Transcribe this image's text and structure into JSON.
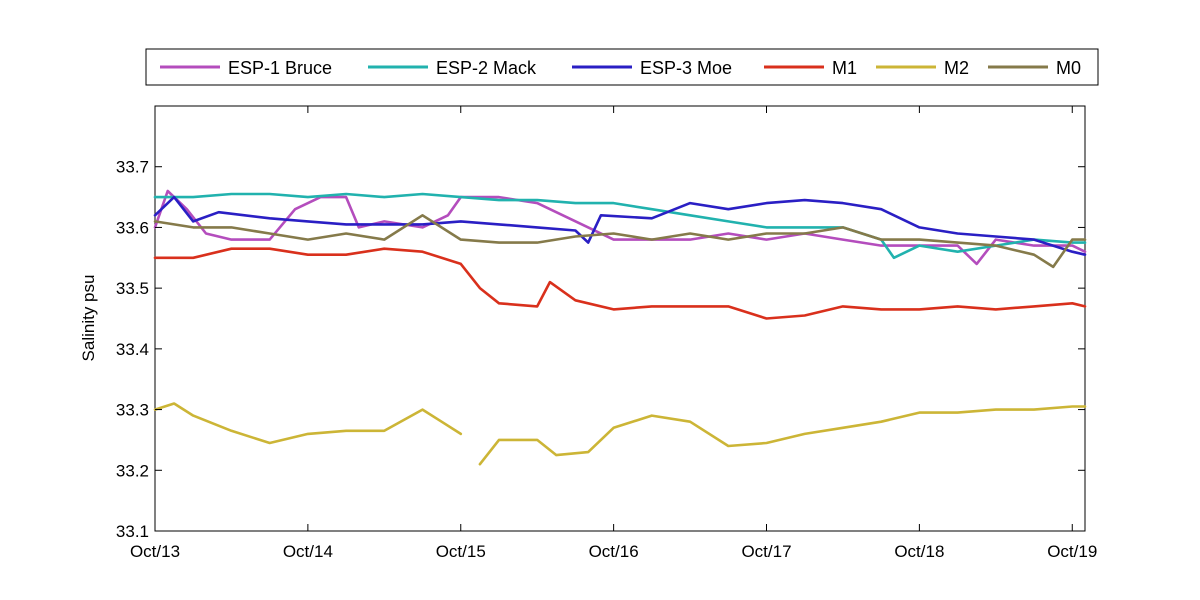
{
  "chart_data": {
    "type": "line",
    "title": "",
    "xlabel": "",
    "ylabel": "Salinity psu",
    "xlim": [
      "2013-10-13",
      "2013-10-19 02:00"
    ],
    "ylim": [
      33.1,
      33.8
    ],
    "x_ticks": [
      "Oct/13",
      "Oct/14",
      "Oct/15",
      "Oct/16",
      "Oct/17",
      "Oct/18",
      "Oct/19"
    ],
    "x_tick_dates": [
      "2013-10-13",
      "2013-10-14",
      "2013-10-15",
      "2013-10-16",
      "2013-10-17",
      "2013-10-18",
      "2013-10-19"
    ],
    "y_ticks": [
      "33.1",
      "33.2",
      "33.3",
      "33.4",
      "33.5",
      "33.6",
      "33.7"
    ],
    "y_tick_values": [
      33.1,
      33.2,
      33.3,
      33.4,
      33.5,
      33.6,
      33.7
    ],
    "grid": false,
    "legend_placement": "top, horizontal, outside plot",
    "series": [
      {
        "name": "ESP-1 Bruce",
        "color": "#b44dbd",
        "points": [
          [
            "2013-10-13 00:00",
            33.6
          ],
          [
            "2013-10-13 02:00",
            33.66
          ],
          [
            "2013-10-13 05:00",
            33.63
          ],
          [
            "2013-10-13 08:00",
            33.59
          ],
          [
            "2013-10-13 12:00",
            33.58
          ],
          [
            "2013-10-13 18:00",
            33.58
          ],
          [
            "2013-10-13 22:00",
            33.63
          ],
          [
            "2013-10-14 02:00",
            33.65
          ],
          [
            "2013-10-14 06:00",
            33.65
          ],
          [
            "2013-10-14 08:00",
            33.6
          ],
          [
            "2013-10-14 12:00",
            33.61
          ],
          [
            "2013-10-14 18:00",
            33.6
          ],
          [
            "2013-10-14 22:00",
            33.62
          ],
          [
            "2013-10-15 00:00",
            33.65
          ],
          [
            "2013-10-15 06:00",
            33.65
          ],
          [
            "2013-10-15 12:00",
            33.64
          ],
          [
            "2013-10-15 20:00",
            33.6
          ],
          [
            "2013-10-16 00:00",
            33.58
          ],
          [
            "2013-10-16 06:00",
            33.58
          ],
          [
            "2013-10-16 12:00",
            33.58
          ],
          [
            "2013-10-16 18:00",
            33.59
          ],
          [
            "2013-10-17 00:00",
            33.58
          ],
          [
            "2013-10-17 06:00",
            33.59
          ],
          [
            "2013-10-17 12:00",
            33.58
          ],
          [
            "2013-10-17 18:00",
            33.57
          ],
          [
            "2013-10-18 00:00",
            33.57
          ],
          [
            "2013-10-18 06:00",
            33.57
          ],
          [
            "2013-10-18 09:00",
            33.54
          ],
          [
            "2013-10-18 12:00",
            33.58
          ],
          [
            "2013-10-18 18:00",
            33.57
          ],
          [
            "2013-10-19 00:00",
            33.57
          ],
          [
            "2013-10-19 02:00",
            33.56
          ]
        ]
      },
      {
        "name": "ESP-2 Mack",
        "color": "#21b2ae",
        "points": [
          [
            "2013-10-13 00:00",
            33.65
          ],
          [
            "2013-10-13 06:00",
            33.65
          ],
          [
            "2013-10-13 12:00",
            33.655
          ],
          [
            "2013-10-13 18:00",
            33.655
          ],
          [
            "2013-10-14 00:00",
            33.65
          ],
          [
            "2013-10-14 06:00",
            33.655
          ],
          [
            "2013-10-14 12:00",
            33.65
          ],
          [
            "2013-10-14 18:00",
            33.655
          ],
          [
            "2013-10-15 00:00",
            33.65
          ],
          [
            "2013-10-15 06:00",
            33.645
          ],
          [
            "2013-10-15 12:00",
            33.645
          ],
          [
            "2013-10-15 18:00",
            33.64
          ],
          [
            "2013-10-16 00:00",
            33.64
          ],
          [
            "2013-10-16 06:00",
            33.63
          ],
          [
            "2013-10-16 12:00",
            33.62
          ],
          [
            "2013-10-16 18:00",
            33.61
          ],
          [
            "2013-10-17 00:00",
            33.6
          ],
          [
            "2013-10-17 06:00",
            33.6
          ],
          [
            "2013-10-17 12:00",
            33.6
          ],
          [
            "2013-10-17 18:00",
            33.58
          ],
          [
            "2013-10-17 20:00",
            33.55
          ],
          [
            "2013-10-18 00:00",
            33.57
          ],
          [
            "2013-10-18 06:00",
            33.56
          ],
          [
            "2013-10-18 12:00",
            33.57
          ],
          [
            "2013-10-18 18:00",
            33.58
          ],
          [
            "2013-10-19 00:00",
            33.575
          ],
          [
            "2013-10-19 02:00",
            33.575
          ]
        ]
      },
      {
        "name": "ESP-3 Moe",
        "color": "#2a1fc4",
        "points": [
          [
            "2013-10-13 00:00",
            33.62
          ],
          [
            "2013-10-13 03:00",
            33.65
          ],
          [
            "2013-10-13 06:00",
            33.61
          ],
          [
            "2013-10-13 10:00",
            33.625
          ],
          [
            "2013-10-13 18:00",
            33.615
          ],
          [
            "2013-10-14 00:00",
            33.61
          ],
          [
            "2013-10-14 06:00",
            33.605
          ],
          [
            "2013-10-14 12:00",
            33.605
          ],
          [
            "2013-10-14 18:00",
            33.605
          ],
          [
            "2013-10-15 00:00",
            33.61
          ],
          [
            "2013-10-15 06:00",
            33.605
          ],
          [
            "2013-10-15 12:00",
            33.6
          ],
          [
            "2013-10-15 18:00",
            33.595
          ],
          [
            "2013-10-15 20:00",
            33.575
          ],
          [
            "2013-10-15 22:00",
            33.62
          ],
          [
            "2013-10-16 06:00",
            33.615
          ],
          [
            "2013-10-16 12:00",
            33.64
          ],
          [
            "2013-10-16 18:00",
            33.63
          ],
          [
            "2013-10-17 00:00",
            33.64
          ],
          [
            "2013-10-17 06:00",
            33.645
          ],
          [
            "2013-10-17 12:00",
            33.64
          ],
          [
            "2013-10-17 18:00",
            33.63
          ],
          [
            "2013-10-18 00:00",
            33.6
          ],
          [
            "2013-10-18 06:00",
            33.59
          ],
          [
            "2013-10-18 12:00",
            33.585
          ],
          [
            "2013-10-18 18:00",
            33.58
          ],
          [
            "2013-10-19 00:00",
            33.56
          ],
          [
            "2013-10-19 02:00",
            33.555
          ]
        ]
      },
      {
        "name": "M1",
        "color": "#d9301c",
        "points": [
          [
            "2013-10-13 00:00",
            33.55
          ],
          [
            "2013-10-13 06:00",
            33.55
          ],
          [
            "2013-10-13 12:00",
            33.565
          ],
          [
            "2013-10-13 18:00",
            33.565
          ],
          [
            "2013-10-14 00:00",
            33.555
          ],
          [
            "2013-10-14 06:00",
            33.555
          ],
          [
            "2013-10-14 12:00",
            33.565
          ],
          [
            "2013-10-14 18:00",
            33.56
          ],
          [
            "2013-10-15 00:00",
            33.54
          ],
          [
            "2013-10-15 03:00",
            33.5
          ],
          [
            "2013-10-15 06:00",
            33.475
          ],
          [
            "2013-10-15 12:00",
            33.47
          ],
          [
            "2013-10-15 14:00",
            33.51
          ],
          [
            "2013-10-15 18:00",
            33.48
          ],
          [
            "2013-10-16 00:00",
            33.465
          ],
          [
            "2013-10-16 06:00",
            33.47
          ],
          [
            "2013-10-16 12:00",
            33.47
          ],
          [
            "2013-10-16 18:00",
            33.47
          ],
          [
            "2013-10-17 00:00",
            33.45
          ],
          [
            "2013-10-17 06:00",
            33.455
          ],
          [
            "2013-10-17 12:00",
            33.47
          ],
          [
            "2013-10-17 18:00",
            33.465
          ],
          [
            "2013-10-18 00:00",
            33.465
          ],
          [
            "2013-10-18 06:00",
            33.47
          ],
          [
            "2013-10-18 12:00",
            33.465
          ],
          [
            "2013-10-18 18:00",
            33.47
          ],
          [
            "2013-10-19 00:00",
            33.475
          ],
          [
            "2013-10-19 02:00",
            33.47
          ]
        ]
      },
      {
        "name": "M2",
        "color": "#ccb536",
        "segments": [
          [
            [
              "2013-10-13 00:00",
              33.3
            ],
            [
              "2013-10-13 03:00",
              33.31
            ],
            [
              "2013-10-13 06:00",
              33.29
            ],
            [
              "2013-10-13 12:00",
              33.265
            ],
            [
              "2013-10-13 18:00",
              33.245
            ],
            [
              "2013-10-14 00:00",
              33.26
            ],
            [
              "2013-10-14 06:00",
              33.265
            ],
            [
              "2013-10-14 12:00",
              33.265
            ],
            [
              "2013-10-14 18:00",
              33.3
            ],
            [
              "2013-10-14 21:00",
              33.28
            ],
            [
              "2013-10-15 00:00",
              33.26
            ]
          ],
          [
            [
              "2013-10-15 03:00",
              33.21
            ],
            [
              "2013-10-15 06:00",
              33.25
            ],
            [
              "2013-10-15 12:00",
              33.25
            ],
            [
              "2013-10-15 15:00",
              33.225
            ],
            [
              "2013-10-15 20:00",
              33.23
            ],
            [
              "2013-10-16 00:00",
              33.27
            ],
            [
              "2013-10-16 06:00",
              33.29
            ],
            [
              "2013-10-16 12:00",
              33.28
            ],
            [
              "2013-10-16 18:00",
              33.24
            ],
            [
              "2013-10-17 00:00",
              33.245
            ],
            [
              "2013-10-17 06:00",
              33.26
            ],
            [
              "2013-10-17 12:00",
              33.27
            ],
            [
              "2013-10-17 18:00",
              33.28
            ],
            [
              "2013-10-18 00:00",
              33.295
            ],
            [
              "2013-10-18 06:00",
              33.295
            ],
            [
              "2013-10-18 12:00",
              33.3
            ],
            [
              "2013-10-18 18:00",
              33.3
            ],
            [
              "2013-10-19 00:00",
              33.305
            ],
            [
              "2013-10-19 02:00",
              33.305
            ]
          ]
        ]
      },
      {
        "name": "M0",
        "color": "#857a4a",
        "points": [
          [
            "2013-10-13 00:00",
            33.61
          ],
          [
            "2013-10-13 06:00",
            33.6
          ],
          [
            "2013-10-13 12:00",
            33.6
          ],
          [
            "2013-10-13 18:00",
            33.59
          ],
          [
            "2013-10-14 00:00",
            33.58
          ],
          [
            "2013-10-14 06:00",
            33.59
          ],
          [
            "2013-10-14 12:00",
            33.58
          ],
          [
            "2013-10-14 18:00",
            33.62
          ],
          [
            "2013-10-15 00:00",
            33.58
          ],
          [
            "2013-10-15 06:00",
            33.575
          ],
          [
            "2013-10-15 12:00",
            33.575
          ],
          [
            "2013-10-15 18:00",
            33.585
          ],
          [
            "2013-10-16 00:00",
            33.59
          ],
          [
            "2013-10-16 06:00",
            33.58
          ],
          [
            "2013-10-16 12:00",
            33.59
          ],
          [
            "2013-10-16 18:00",
            33.58
          ],
          [
            "2013-10-17 00:00",
            33.59
          ],
          [
            "2013-10-17 06:00",
            33.59
          ],
          [
            "2013-10-17 12:00",
            33.6
          ],
          [
            "2013-10-17 18:00",
            33.58
          ],
          [
            "2013-10-18 00:00",
            33.58
          ],
          [
            "2013-10-18 06:00",
            33.575
          ],
          [
            "2013-10-18 12:00",
            33.57
          ],
          [
            "2013-10-18 18:00",
            33.555
          ],
          [
            "2013-10-18 21:00",
            33.535
          ],
          [
            "2013-10-19 00:00",
            33.58
          ],
          [
            "2013-10-19 02:00",
            33.58
          ]
        ]
      }
    ]
  }
}
